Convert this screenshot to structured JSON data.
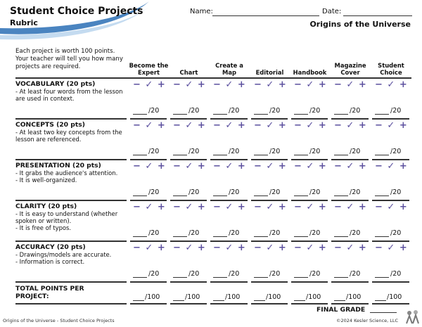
{
  "header": {
    "title": "Student Choice Projects",
    "subtitle": "Rubric",
    "name_label": "Name:",
    "date_label": "Date:",
    "topic": "Origins of the Universe"
  },
  "table": {
    "intro": "Each project is worth 100 points. Your teacher will tell you how many projects are required.",
    "columns": [
      "Become the Expert",
      "Chart",
      "Create a Map",
      "Editorial",
      "Handbook",
      "Magazine Cover",
      "Student Choice"
    ],
    "rating": "− ✓ +",
    "rows": [
      {
        "title": "VOCABULARY (20 pts)",
        "items": [
          "- At least four words from the lesson are used in context."
        ],
        "score": "/20"
      },
      {
        "title": "CONCEPTS (20 pts)",
        "items": [
          "- At least two key concepts from the lesson are referenced."
        ],
        "score": "/20"
      },
      {
        "title": "PRESENTATION (20 pts)",
        "items": [
          "- It grabs the audience's attention.",
          "- It is well-organized."
        ],
        "score": "/20"
      },
      {
        "title": "CLARITY (20 pts)",
        "items": [
          "- It is easy to understand (whether spoken or written).",
          "- It is free of typos."
        ],
        "score": "/20"
      },
      {
        "title": "ACCURACY (20 pts)",
        "items": [
          "- Drawings/models are accurate.",
          "- Information is correct."
        ],
        "score": "/20"
      }
    ],
    "total_label": "TOTAL POINTS PER PROJECT:",
    "total_score": "/100"
  },
  "final_grade": "FINAL GRADE",
  "footer": {
    "left": "Origins of the Universe - Student Choice Projects",
    "right": "©2024  Kesler Science, LLC"
  }
}
